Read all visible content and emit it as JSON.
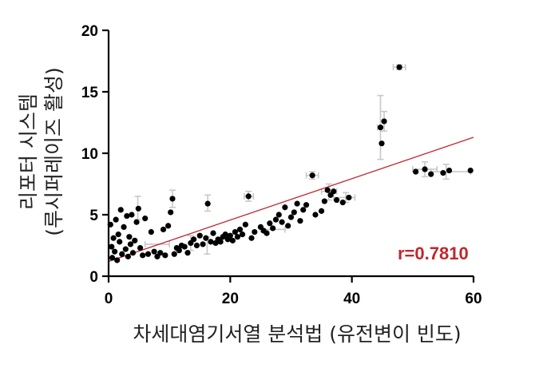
{
  "chart_data": {
    "type": "scatter",
    "xlabel": "차세대염기서열 분석법 (유전변이 빈도)",
    "ylabel_line1": "리포터 시스템",
    "ylabel_line2": "(루시퍼레이즈 활성)",
    "xlim": [
      0,
      60
    ],
    "ylim": [
      0,
      20
    ],
    "x_ticks": [
      0,
      20,
      40,
      60
    ],
    "y_ticks": [
      0,
      5,
      10,
      15,
      20
    ],
    "x_tick_labels": [
      "0",
      "20",
      "40",
      "60"
    ],
    "y_tick_labels": [
      "0",
      "5",
      "10",
      "15",
      "20"
    ],
    "annotation": "r=0.7810",
    "colors": {
      "points": "#000000",
      "trendline": "#c0272d",
      "annotation": "#c0272d",
      "error_bars": "#c8c8c8",
      "axes": "#000000"
    },
    "trendline": {
      "x": [
        0,
        60
      ],
      "y": [
        1.2,
        11.3
      ]
    },
    "points": [
      {
        "x": 0.3,
        "y": 4.2
      },
      {
        "x": 0.5,
        "y": 2.4
      },
      {
        "x": 0.6,
        "y": 1.5
      },
      {
        "x": 0.8,
        "y": 3.1
      },
      {
        "x": 1.0,
        "y": 2.0
      },
      {
        "x": 1.2,
        "y": 4.6
      },
      {
        "x": 1.4,
        "y": 1.3
      },
      {
        "x": 1.6,
        "y": 3.4
      },
      {
        "x": 1.8,
        "y": 2.8
      },
      {
        "x": 2.0,
        "y": 5.4
      },
      {
        "x": 2.2,
        "y": 1.8
      },
      {
        "x": 2.5,
        "y": 4.0
      },
      {
        "x": 2.8,
        "y": 2.2
      },
      {
        "x": 3.0,
        "y": 4.9
      },
      {
        "x": 3.2,
        "y": 1.6
      },
      {
        "x": 3.4,
        "y": 3.2
      },
      {
        "x": 3.6,
        "y": 2.6
      },
      {
        "x": 3.8,
        "y": 5.0
      },
      {
        "x": 4.0,
        "y": 1.9
      },
      {
        "x": 4.3,
        "y": 2.9
      },
      {
        "x": 4.6,
        "y": 4.4
      },
      {
        "x": 4.9,
        "y": 5.5
      },
      {
        "x": 5.2,
        "y": 2.3
      },
      {
        "x": 5.6,
        "y": 1.7
      },
      {
        "x": 6.0,
        "y": 4.7
      },
      {
        "x": 6.5,
        "y": 1.8
      },
      {
        "x": 7.0,
        "y": 3.6
      },
      {
        "x": 7.5,
        "y": 2.0
      },
      {
        "x": 8.0,
        "y": 1.6
      },
      {
        "x": 8.5,
        "y": 1.9
      },
      {
        "x": 9.0,
        "y": 3.8
      },
      {
        "x": 9.3,
        "y": 1.7
      },
      {
        "x": 9.8,
        "y": 4.1
      },
      {
        "x": 10.2,
        "y": 5.2
      },
      {
        "x": 10.5,
        "y": 6.3
      },
      {
        "x": 10.8,
        "y": 1.8
      },
      {
        "x": 11.2,
        "y": 2.3
      },
      {
        "x": 11.6,
        "y": 2.1
      },
      {
        "x": 12.0,
        "y": 2.5
      },
      {
        "x": 12.5,
        "y": 2.4
      },
      {
        "x": 13.0,
        "y": 1.9
      },
      {
        "x": 13.5,
        "y": 2.7
      },
      {
        "x": 14.0,
        "y": 3.0
      },
      {
        "x": 14.5,
        "y": 2.5
      },
      {
        "x": 15.0,
        "y": 3.3
      },
      {
        "x": 15.5,
        "y": 2.6
      },
      {
        "x": 16.0,
        "y": 3.1
      },
      {
        "x": 16.3,
        "y": 5.9
      },
      {
        "x": 16.8,
        "y": 2.8
      },
      {
        "x": 17.2,
        "y": 3.5
      },
      {
        "x": 17.6,
        "y": 2.7
      },
      {
        "x": 18.0,
        "y": 3.0
      },
      {
        "x": 18.4,
        "y": 2.8
      },
      {
        "x": 18.8,
        "y": 3.2
      },
      {
        "x": 19.2,
        "y": 3.4
      },
      {
        "x": 19.6,
        "y": 3.0
      },
      {
        "x": 20.0,
        "y": 3.3
      },
      {
        "x": 20.4,
        "y": 2.9
      },
      {
        "x": 20.8,
        "y": 3.6
      },
      {
        "x": 21.2,
        "y": 3.2
      },
      {
        "x": 21.6,
        "y": 3.8
      },
      {
        "x": 22.0,
        "y": 3.4
      },
      {
        "x": 22.5,
        "y": 4.2
      },
      {
        "x": 23.0,
        "y": 6.5
      },
      {
        "x": 23.5,
        "y": 3.1
      },
      {
        "x": 24.0,
        "y": 3.6
      },
      {
        "x": 25.0,
        "y": 4.0
      },
      {
        "x": 25.5,
        "y": 3.7
      },
      {
        "x": 26.0,
        "y": 3.5
      },
      {
        "x": 26.5,
        "y": 4.3
      },
      {
        "x": 27.0,
        "y": 3.9
      },
      {
        "x": 27.5,
        "y": 4.6
      },
      {
        "x": 28.0,
        "y": 5.0
      },
      {
        "x": 28.5,
        "y": 4.4
      },
      {
        "x": 29.0,
        "y": 5.6
      },
      {
        "x": 29.5,
        "y": 4.1
      },
      {
        "x": 30.0,
        "y": 4.8
      },
      {
        "x": 30.5,
        "y": 5.2
      },
      {
        "x": 31.0,
        "y": 5.9
      },
      {
        "x": 31.5,
        "y": 4.5
      },
      {
        "x": 32.0,
        "y": 5.4
      },
      {
        "x": 32.5,
        "y": 5.8
      },
      {
        "x": 33.5,
        "y": 8.2
      },
      {
        "x": 34.0,
        "y": 5.0
      },
      {
        "x": 35.0,
        "y": 5.3
      },
      {
        "x": 35.5,
        "y": 6.1
      },
      {
        "x": 36.0,
        "y": 7.0
      },
      {
        "x": 36.5,
        "y": 6.6
      },
      {
        "x": 37.0,
        "y": 6.9
      },
      {
        "x": 37.5,
        "y": 6.2
      },
      {
        "x": 38.5,
        "y": 6.0
      },
      {
        "x": 39.5,
        "y": 6.4
      },
      {
        "x": 44.7,
        "y": 12.1
      },
      {
        "x": 44.9,
        "y": 10.8
      },
      {
        "x": 45.3,
        "y": 12.6
      },
      {
        "x": 47.8,
        "y": 17.0
      },
      {
        "x": 50.5,
        "y": 8.5
      },
      {
        "x": 52.0,
        "y": 8.7
      },
      {
        "x": 53.0,
        "y": 8.3
      },
      {
        "x": 55.0,
        "y": 8.4
      },
      {
        "x": 56.0,
        "y": 8.6
      },
      {
        "x": 59.5,
        "y": 8.6
      }
    ],
    "error_bars": [
      {
        "x": 4.8,
        "y": 5.6,
        "ylo": 4.6,
        "yhi": 6.5
      },
      {
        "x": 10.5,
        "y": 6.3,
        "ylo": 5.6,
        "yhi": 7.0
      },
      {
        "x": 16.3,
        "y": 5.9,
        "ylo": 5.3,
        "yhi": 6.6
      },
      {
        "x": 16.2,
        "y": 2.5,
        "ylo": 1.8,
        "yhi": 3.2
      },
      {
        "x": 13.5,
        "y": 2.7,
        "ylo": 2.1,
        "yhi": 3.3
      },
      {
        "x": 23.0,
        "y": 6.5,
        "ylo": 6.1,
        "yhi": 6.9,
        "xlo": 22.3,
        "xhi": 23.8
      },
      {
        "x": 33.5,
        "y": 8.2,
        "ylo": 7.9,
        "yhi": 8.5,
        "xlo": 32.5,
        "xhi": 34.5
      },
      {
        "x": 36.2,
        "y": 6.9,
        "ylo": 6.2,
        "yhi": 7.5,
        "xlo": 35.0,
        "xhi": 37.5
      },
      {
        "x": 44.7,
        "y": 12.1,
        "ylo": 9.5,
        "yhi": 14.7,
        "xlo": 44.2,
        "xhi": 45.3
      },
      {
        "x": 45.3,
        "y": 12.6,
        "ylo": 11.8,
        "yhi": 13.4
      },
      {
        "x": 47.8,
        "y": 17.0,
        "ylo": 16.8,
        "yhi": 17.2,
        "xlo": 46.8,
        "xhi": 48.8
      },
      {
        "x": 52.0,
        "y": 8.7,
        "ylo": 8.1,
        "yhi": 9.3,
        "xlo": 50.0,
        "xhi": 54.0
      },
      {
        "x": 55.5,
        "y": 8.5,
        "ylo": 7.9,
        "yhi": 9.1,
        "xlo": 53.0,
        "xhi": 59.5
      },
      {
        "x": 8.0,
        "y": 2.6,
        "xlo": 6.0,
        "xhi": 10.0,
        "ylo": 2.6,
        "yhi": 2.6
      },
      {
        "x": 27.0,
        "y": 3.8,
        "xlo": 25.0,
        "xhi": 29.0,
        "ylo": 3.8,
        "yhi": 3.8
      },
      {
        "x": 39.0,
        "y": 6.4,
        "xlo": 37.0,
        "xhi": 40.5,
        "ylo": 6.0,
        "yhi": 6.8
      }
    ]
  }
}
